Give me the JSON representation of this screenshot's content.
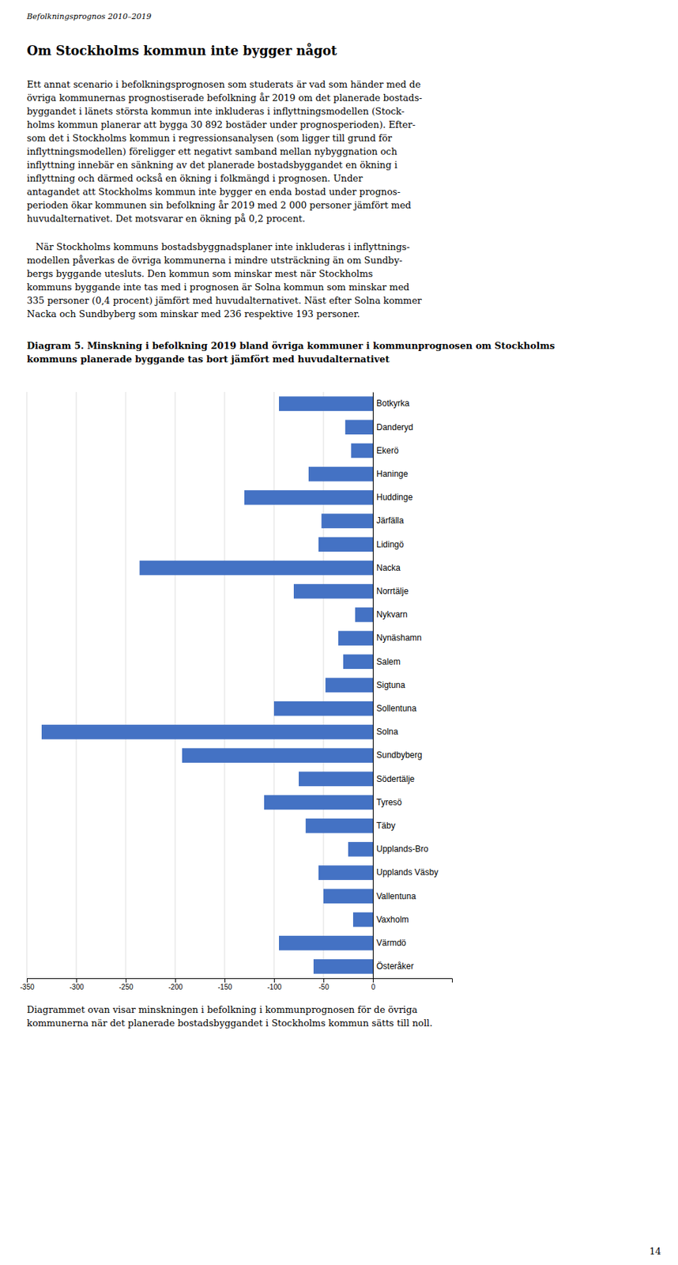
{
  "header": "Befolkningsprognos 2010–2019",
  "section_title": "Om Stockholms kommun inte bygger något",
  "body1_lines": [
    "Ett annat scenario i befolkningsprognosen som studerats är vad som händer med de",
    "övriga kommunernas prognostiserade befolkning år 2019 om det planerade bostads-",
    "byggandet i länets största kommun inte inkluderas i inflyttningsmodellen (Stock-",
    "holms kommun planerar att bygga 30 892 bostäder under prognosperioden). Efter-",
    "som det i Stockholms kommun i regressionsanalysen (som ligger till grund för",
    "inflyttningsmodellen) föreligger ett negativt samband mellan nybyggnation och",
    "inflyttning innebär en sänkning av det planerade bostadsbyggandet en ökning i",
    "inflyttning och därmed också en ökning i folkmängd i prognosen. Under",
    "antagandet att Stockholms kommun inte bygger en enda bostad under prognos-",
    "perioden ökar kommunen sin befolkning år 2019 med 2 000 personer jämfört med",
    "huvudalternativet. Det motsvarar en ökning på 0,2 procent."
  ],
  "body2_lines": [
    "   När Stockholms kommuns bostadsbyggnadsplaner inte inkluderas i inflyttnings-",
    "modellen påverkas de övriga kommunerna i mindre utsträckning än om Sundby-",
    "bergs byggande utesluts. Den kommun som minskar mest när Stockholms",
    "kommuns byggande inte tas med i prognosen är Solna kommun som minskar med",
    "335 personer (0,4 procent) jämfört med huvudalternativet. Näst efter Solna kommer",
    "Nacka och Sundbyberg som minskar med 236 respektive 193 personer."
  ],
  "caption": "Diagrammet ovan visar minskningen i befolkning i kommunprognosen för de övriga\nkommunerna när det planerade bostadsbyggandet i Stockholms kommun sätts till noll.",
  "page_number": "14",
  "chart_data": {
    "type": "bar",
    "orientation": "horizontal",
    "title": "Diagram 5. Minskning i befolkning 2019 bland övriga kommuner i kommunprognosen om Stockholms\nkommuns planerade byggande tas bort jämfört med huvudalternativet",
    "categories": [
      "Botkyrka",
      "Danderyd",
      "Ekerö",
      "Haninge",
      "Huddinge",
      "Järfälla",
      "Lidingö",
      "Nacka",
      "Norrtälje",
      "Nykvarn",
      "Nynäshamn",
      "Salem",
      "Sigtuna",
      "Sollentuna",
      "Solna",
      "Sundbyberg",
      "Södertälje",
      "Tyresö",
      "Täby",
      "Upplands-Bro",
      "Upplands Väsby",
      "Vallentuna",
      "Vaxholm",
      "Värmdö",
      "Österåker"
    ],
    "values": [
      -95,
      -28,
      -22,
      -65,
      -130,
      -52,
      -55,
      -236,
      -80,
      -18,
      -35,
      -30,
      -48,
      -100,
      -335,
      -193,
      -75,
      -110,
      -68,
      -25,
      -55,
      -50,
      -20,
      -95,
      -60
    ],
    "color": "#4472C4",
    "xlim": [
      -350,
      80
    ],
    "xticks": [
      -350,
      -300,
      -250,
      -200,
      -150,
      -100,
      -50,
      0
    ],
    "grid": true
  }
}
